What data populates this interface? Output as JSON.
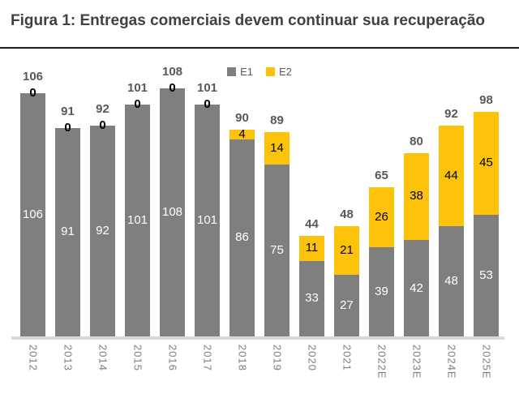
{
  "title": "Figura 1: Entregas comerciais devem continuar sua recuperação",
  "colors": {
    "background": "#ffffff",
    "title_text": "#3f4142",
    "title_rule": "#1e1e1e",
    "bar_e1": "#7f7f7f",
    "bar_e2": "#fdc20a",
    "total_label": "#595959",
    "e1_label": "#ffffff",
    "e2_label": "#000000",
    "axis_line": "#d9d9d9",
    "tick_label": "#7c7c7c",
    "legend_text": "#595959"
  },
  "legend": {
    "items": [
      {
        "label": "E1",
        "color": "#7f7f7f"
      },
      {
        "label": "E2",
        "color": "#fdc20a"
      }
    ]
  },
  "chart_data": {
    "type": "bar",
    "stacked": true,
    "title": "Figura 1: Entregas comerciais devem continuar sua recuperação",
    "xlabel": "",
    "ylabel": "",
    "y_axis_visible": false,
    "grid": false,
    "legend_position": "top-center",
    "categories": [
      "2012",
      "2013",
      "2014",
      "2015",
      "2016",
      "2017",
      "2018",
      "2019",
      "2020",
      "2021",
      "2022E",
      "2023E",
      "2024E",
      "2025E"
    ],
    "series": [
      {
        "name": "E1",
        "color": "#7f7f7f",
        "values": [
          106,
          91,
          92,
          101,
          108,
          101,
          86,
          75,
          33,
          27,
          39,
          42,
          48,
          53
        ]
      },
      {
        "name": "E2",
        "color": "#fdc20a",
        "values": [
          0,
          0,
          0,
          0,
          0,
          0,
          4,
          14,
          11,
          21,
          26,
          38,
          44,
          45
        ]
      }
    ],
    "totals": [
      106,
      91,
      92,
      101,
      108,
      101,
      90,
      89,
      44,
      48,
      65,
      80,
      92,
      98
    ],
    "segment_labels_shown": true,
    "total_labels_shown": true
  }
}
